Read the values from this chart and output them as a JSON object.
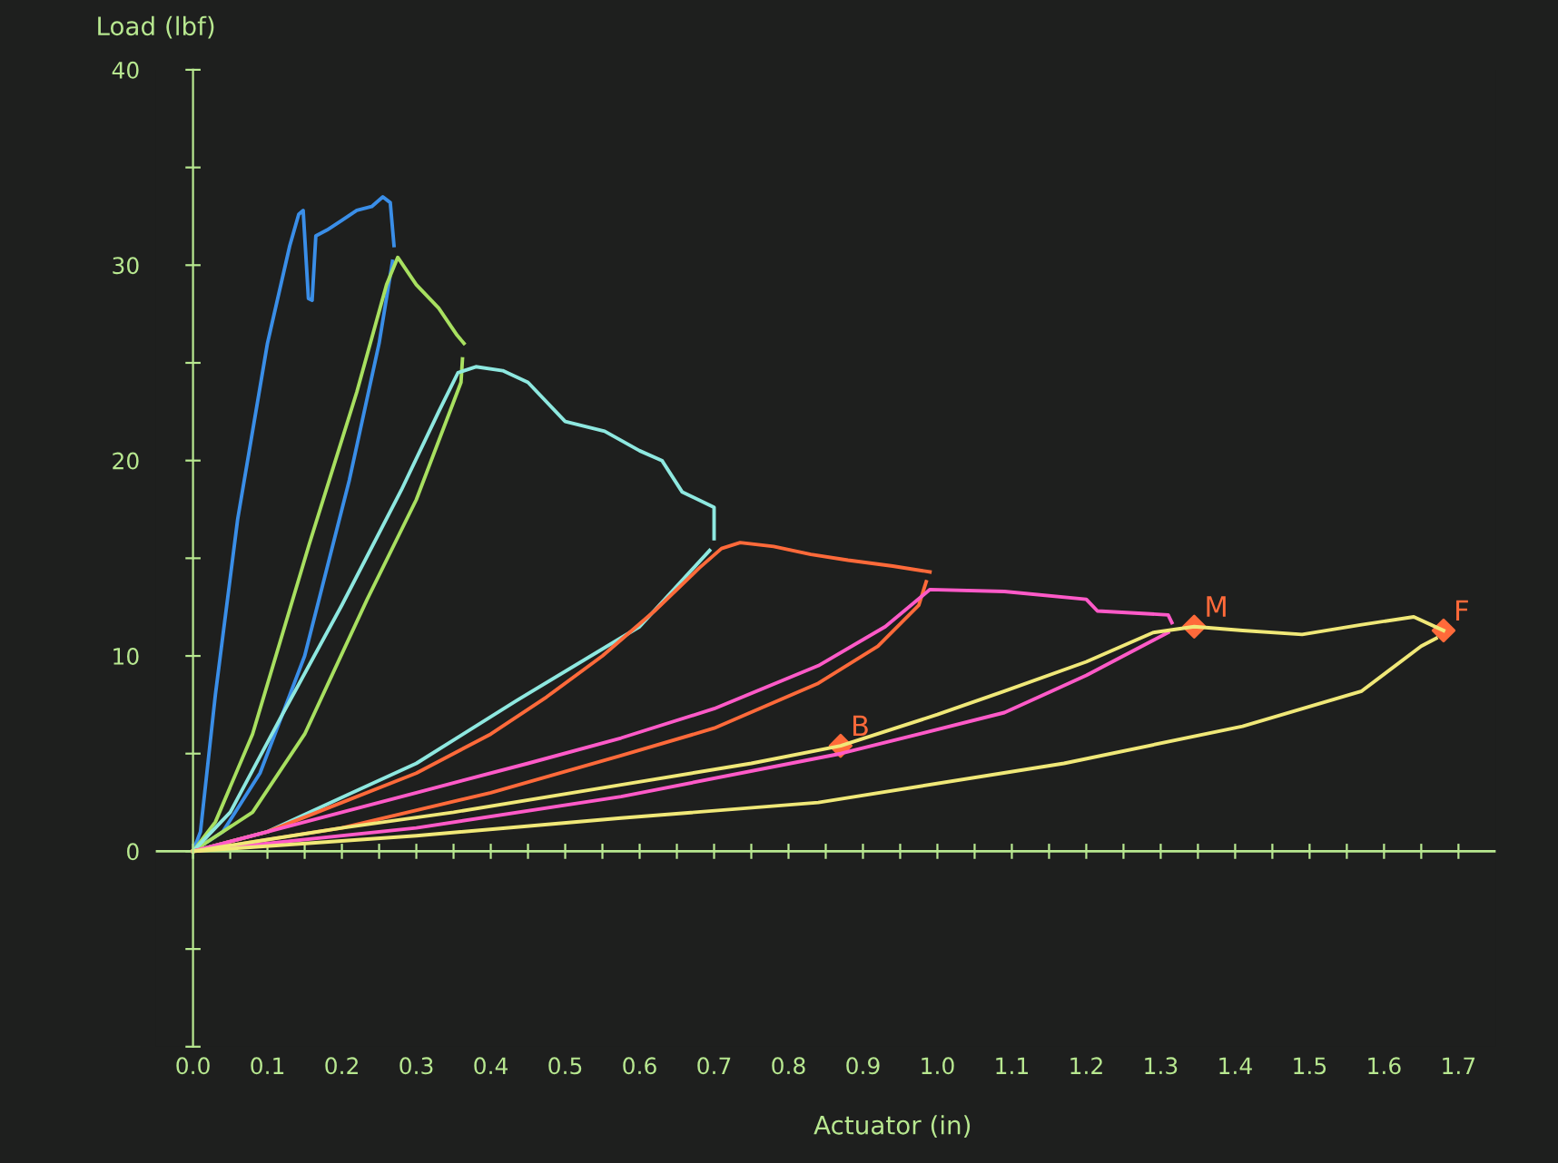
{
  "chart_data": {
    "type": "line",
    "ylabel": "Load (lbf)",
    "xlabel": "Actuator (in)",
    "xlim": [
      -0.05,
      1.75
    ],
    "ylim": [
      -10,
      40
    ],
    "xticks": [
      {
        "value": 0,
        "label": "0.0"
      },
      {
        "value": 0.05,
        "label": null
      },
      {
        "value": 0.1,
        "label": "0.1"
      },
      {
        "value": 0.15,
        "label": null
      },
      {
        "value": 0.2,
        "label": "0.2"
      },
      {
        "value": 0.25,
        "label": null
      },
      {
        "value": 0.3,
        "label": "0.3"
      },
      {
        "value": 0.35,
        "label": null
      },
      {
        "value": 0.4,
        "label": "0.4"
      },
      {
        "value": 0.45,
        "label": null
      },
      {
        "value": 0.5,
        "label": "0.5"
      },
      {
        "value": 0.55,
        "label": null
      },
      {
        "value": 0.6,
        "label": "0.6"
      },
      {
        "value": 0.65,
        "label": null
      },
      {
        "value": 0.7,
        "label": "0.7"
      },
      {
        "value": 0.75,
        "label": null
      },
      {
        "value": 0.8,
        "label": "0.8"
      },
      {
        "value": 0.85,
        "label": null
      },
      {
        "value": 0.9,
        "label": "0.9"
      },
      {
        "value": 0.95,
        "label": null
      },
      {
        "value": 1.0,
        "label": "1.0"
      },
      {
        "value": 1.05,
        "label": null
      },
      {
        "value": 1.1,
        "label": "1.1"
      },
      {
        "value": 1.15,
        "label": null
      },
      {
        "value": 1.2,
        "label": "1.2"
      },
      {
        "value": 1.25,
        "label": null
      },
      {
        "value": 1.3,
        "label": "1.3"
      },
      {
        "value": 1.35,
        "label": null
      },
      {
        "value": 1.4,
        "label": "1.4"
      },
      {
        "value": 1.45,
        "label": null
      },
      {
        "value": 1.5,
        "label": "1.5"
      },
      {
        "value": 1.55,
        "label": null
      },
      {
        "value": 1.6,
        "label": "1.6"
      },
      {
        "value": 1.65,
        "label": null
      },
      {
        "value": 1.7,
        "label": "1.7"
      }
    ],
    "yticks": [
      {
        "value": -10,
        "label": null
      },
      {
        "value": -5,
        "label": null
      },
      0,
      {
        "value": 5,
        "label": null
      },
      10,
      {
        "value": 15,
        "label": null
      },
      20,
      {
        "value": 25,
        "label": null
      },
      30,
      {
        "value": 35,
        "label": null
      },
      40
    ],
    "ref_lines": [
      {
        "axis": "y",
        "value": 0,
        "color": "#b8e890"
      }
    ],
    "grid": false,
    "legend": false,
    "marker": "none",
    "line_style": "solid",
    "series": [
      {
        "color": "#3a8ee8",
        "x": [
          0,
          0.01,
          0.03,
          0.06,
          0.1,
          0.13,
          0.142,
          0.148,
          0.155,
          0.16,
          0.165,
          0.18,
          0.2,
          0.22,
          0.24,
          0.255,
          0.265,
          0.27
        ],
        "values": [
          0,
          1,
          8,
          17,
          26,
          31,
          32.6,
          32.8,
          28.3,
          28.2,
          31.5,
          31.8,
          32.3,
          32.8,
          33,
          33.5,
          33.2,
          31
        ]
      },
      {
        "color": "#3a8ee8",
        "x": [
          0,
          0.04,
          0.09,
          0.15,
          0.21,
          0.25,
          0.268
        ],
        "values": [
          0,
          1,
          4,
          10,
          19,
          26,
          30.2
        ]
      },
      {
        "color": "#a8e060",
        "x": [
          0,
          0.03,
          0.08,
          0.156,
          0.22,
          0.26,
          0.275,
          0.3,
          0.33,
          0.355,
          0.364
        ],
        "values": [
          0,
          1.5,
          6,
          15.7,
          23.5,
          29,
          30.4,
          29,
          27.8,
          26.4,
          26
        ]
      },
      {
        "color": "#a8e060",
        "x": [
          0,
          0.08,
          0.15,
          0.234,
          0.3,
          0.36,
          0.362
        ],
        "values": [
          0,
          2,
          6,
          12.9,
          18,
          24,
          25.2
        ]
      },
      {
        "color": "#8ee8e0",
        "x": [
          0,
          0.05,
          0.12,
          0.2,
          0.28,
          0.33,
          0.356,
          0.38,
          0.416,
          0.45,
          0.5,
          0.553,
          0.6,
          0.63,
          0.657,
          0.7,
          0.7
        ],
        "values": [
          0,
          2,
          7,
          12.6,
          18.5,
          22.5,
          24.5,
          24.8,
          24.6,
          24,
          22,
          21.5,
          20.5,
          20,
          18.4,
          17.6,
          16
        ]
      },
      {
        "color": "#8ee8e0",
        "x": [
          0,
          0.1,
          0.208,
          0.3,
          0.434,
          0.6,
          0.694
        ],
        "values": [
          0,
          1,
          2.9,
          4.5,
          7.7,
          11.5,
          15.4
        ]
      },
      {
        "color": "#ff6a3a",
        "x": [
          0,
          0.1,
          0.2,
          0.3,
          0.4,
          0.475,
          0.55,
          0.62,
          0.68,
          0.71,
          0.735,
          0.78,
          0.83,
          0.88,
          0.94,
          0.99
        ],
        "values": [
          0,
          1,
          2.5,
          4,
          6,
          7.9,
          10,
          12.3,
          14.5,
          15.5,
          15.8,
          15.6,
          15.2,
          14.9,
          14.6,
          14.3
        ]
      },
      {
        "color": "#ff6a3a",
        "x": [
          0,
          0.2,
          0.4,
          0.575,
          0.7,
          0.84,
          0.92,
          0.975,
          0.985
        ],
        "values": [
          0,
          1.2,
          3,
          4.9,
          6.3,
          8.6,
          10.5,
          12.6,
          13.8
        ]
      },
      {
        "color": "#ff5ac8",
        "x": [
          0,
          0.1,
          0.2,
          0.3,
          0.45,
          0.575,
          0.7,
          0.84,
          0.93,
          0.99,
          1.09,
          1.2,
          1.215,
          1.31,
          1.315
        ],
        "values": [
          0,
          1,
          2,
          3,
          4.5,
          5.8,
          7.3,
          9.5,
          11.5,
          13.4,
          13.3,
          12.9,
          12.3,
          12.1,
          11.7
        ]
      },
      {
        "color": "#ff5ac8",
        "x": [
          0,
          0.3,
          0.575,
          0.87,
          1.09,
          1.2,
          1.29,
          1.31
        ],
        "values": [
          0,
          1.2,
          2.8,
          5,
          7.1,
          9,
          10.8,
          11.2
        ]
      },
      {
        "color": "#f0e878",
        "x": [
          0,
          0.1,
          0.2,
          0.35,
          0.575,
          0.75,
          0.87,
          1.0,
          1.09,
          1.2,
          1.29,
          1.345,
          1.41,
          1.49,
          1.57,
          1.64,
          1.68
        ],
        "values": [
          0,
          0.6,
          1.2,
          2,
          3.4,
          4.5,
          5.4,
          7,
          8.2,
          9.7,
          11.2,
          11.5,
          11.3,
          11.1,
          11.6,
          12,
          11.3
        ]
      },
      {
        "color": "#f0e878",
        "x": [
          0,
          0.3,
          0.575,
          0.84,
          1.17,
          1.41,
          1.57,
          1.65,
          1.67
        ],
        "values": [
          0,
          0.8,
          1.7,
          2.5,
          4.5,
          6.4,
          8.2,
          10.5,
          10.9
        ]
      },
      {
        "type": "scatter",
        "marker": "diamond",
        "color": "#ff6a3a",
        "x": [
          0.87,
          1.345,
          1.68
        ],
        "values": [
          5.4,
          11.5,
          11.3
        ]
      }
    ],
    "annotations": [
      {
        "text": "B",
        "x": 0.87,
        "y": 5.4
      },
      {
        "text": "M",
        "x": 1.345,
        "y": 11.5
      },
      {
        "text": "F",
        "x": 1.68,
        "y": 11.3
      }
    ]
  }
}
